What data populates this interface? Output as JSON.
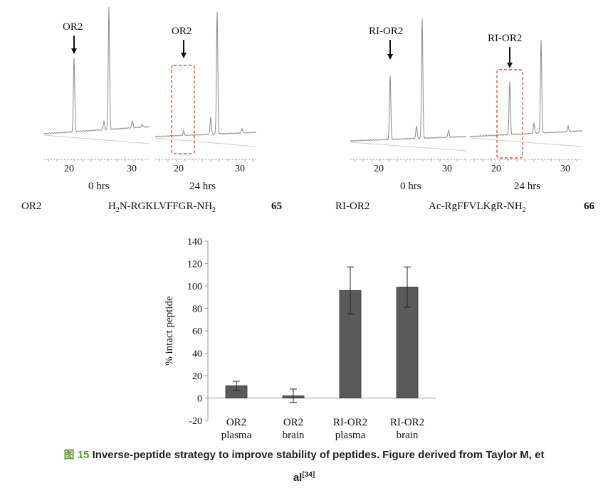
{
  "chromatograms": [
    {
      "id": "or2_0",
      "arrow_label": "OR2",
      "ticks": [
        "20",
        "30"
      ],
      "time_label": "0 hrs"
    },
    {
      "id": "or2_24",
      "arrow_label": "OR2",
      "ticks": [
        "20",
        "30"
      ],
      "time_label": "24 hrs"
    },
    {
      "id": "ri_0",
      "arrow_label": "RI-OR2",
      "ticks": [
        "20",
        "30"
      ],
      "time_label": "0 hrs"
    },
    {
      "id": "ri_24",
      "arrow_label": "RI-OR2",
      "ticks": [
        "20",
        "30"
      ],
      "time_label": "24 hrs"
    }
  ],
  "peptides": {
    "left": {
      "name": "OR2",
      "seq_pre": "H",
      "seq_sub": "2",
      "seq_mid": "N-RGKLVFFGR-NH",
      "seq_sub2": "2",
      "number": "65"
    },
    "right": {
      "name": "RI-OR2",
      "seq_pre": "Ac-RgFFVLKgR-NH",
      "seq_sub": "2",
      "number": "66"
    }
  },
  "chart_data": {
    "type": "bar",
    "categories": [
      "OR2\nplasma",
      "OR2\nbrain",
      "RI-OR2\nplasma",
      "RI-OR2\nbrain"
    ],
    "values": [
      11,
      2,
      96,
      99
    ],
    "errors": [
      4,
      6,
      21,
      18
    ],
    "ylabel": "% intact peptide",
    "ylim": [
      -20,
      140
    ],
    "yticks": [
      -20,
      0,
      20,
      40,
      60,
      80,
      100,
      120,
      140
    ],
    "grid": false,
    "bar_color": "#5a5a5a"
  },
  "caption": {
    "fig_label": "图 15",
    "text": "Inverse-peptide strategy to improve stability of peptides. Figure derived from Taylor M, et",
    "line2": "al",
    "ref": "[34]"
  }
}
